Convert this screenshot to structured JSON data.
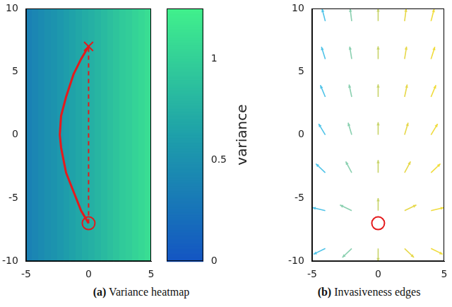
{
  "chart_data": [
    {
      "type": "heatmap",
      "title": "(a) Variance heatmap",
      "xlim": [
        -5,
        5
      ],
      "xticks": [
        -5,
        0,
        5
      ],
      "ylim": [
        -10,
        10
      ],
      "yticks": [
        -10,
        -5,
        0,
        5,
        10
      ],
      "grid": false,
      "cells": {
        "x": [
          -4.75,
          -4.25,
          -3.75,
          -3.25,
          -2.75,
          -2.25,
          -1.75,
          -1.25,
          -0.75,
          -0.25,
          0.25,
          0.75,
          1.25,
          1.75,
          2.25,
          2.75,
          3.25,
          3.75,
          4.25,
          4.75
        ],
        "values": [
          0.37,
          0.41,
          0.45,
          0.49,
          0.52,
          0.56,
          0.6,
          0.64,
          0.68,
          0.72,
          0.75,
          0.79,
          0.83,
          0.87,
          0.91,
          0.95,
          0.98,
          1.02,
          1.06,
          1.1
        ]
      },
      "colorbar": {
        "label": "variance",
        "range": [
          0,
          1.25
        ],
        "ticks": [
          0,
          0.5,
          1
        ]
      },
      "series": [
        {
          "type": "line",
          "line_style": "solid",
          "color": "#e41a1c",
          "x": [
            0,
            -0.6,
            -1.2,
            -1.8,
            -2.2,
            -2.3,
            -2.2,
            -1.8,
            -1.2,
            -0.6,
            0
          ],
          "y": [
            -7,
            -6,
            -4.5,
            -3,
            -1,
            0,
            1.5,
            3,
            4.8,
            6,
            7
          ]
        },
        {
          "type": "line",
          "line_style": "dashed",
          "color": "#e41a1c",
          "x": [
            0,
            0
          ],
          "y": [
            -7,
            7
          ]
        },
        {
          "type": "scatter",
          "marker": "circle",
          "color": "#e41a1c",
          "x": [
            0
          ],
          "y": [
            -7
          ]
        },
        {
          "type": "scatter",
          "marker": "cross",
          "color": "#e41a1c",
          "x": [
            0
          ],
          "y": [
            7
          ]
        }
      ]
    },
    {
      "type": "quiver",
      "title": "(b) Invasiveness edges",
      "xlim": [
        -5,
        5
      ],
      "xticks": [
        -5,
        0,
        5
      ],
      "ylim": [
        -10,
        10
      ],
      "yticks": [
        -10,
        -5,
        0,
        5,
        10
      ],
      "grid": false,
      "series": [
        {
          "type": "quiver",
          "color": "#4fc3e8",
          "x": [
            -4,
            -4,
            -4,
            -4,
            -4,
            -4,
            -4
          ],
          "y": [
            -9,
            -6,
            -3,
            0,
            3,
            6,
            9
          ],
          "u": [
            -0.89,
            -0.97,
            -0.71,
            -0.5,
            -0.37,
            -0.29,
            -0.24
          ],
          "v": [
            -0.45,
            0.24,
            0.71,
            0.87,
            0.93,
            0.96,
            0.97
          ]
        },
        {
          "type": "quiver",
          "color": "#8ad0b0",
          "x": [
            -2,
            -2,
            -2,
            -2,
            -2,
            -2,
            -2
          ],
          "y": [
            -9,
            -6,
            -3,
            0,
            3,
            6,
            9
          ],
          "u": [
            -0.71,
            -0.89,
            -0.45,
            -0.27,
            -0.2,
            -0.15,
            -0.12
          ],
          "v": [
            -0.71,
            0.45,
            0.89,
            0.96,
            0.98,
            0.99,
            0.99
          ]
        },
        {
          "type": "quiver",
          "color": "#c8d46a",
          "x": [
            0,
            0,
            0,
            0,
            0,
            0,
            0
          ],
          "y": [
            -9,
            -6,
            -3,
            0,
            3,
            6,
            9
          ],
          "u": [
            0,
            0,
            0,
            0,
            0,
            0,
            0
          ],
          "v": [
            -1,
            1,
            1,
            1,
            1,
            1,
            1
          ]
        },
        {
          "type": "quiver",
          "color": "#e6d84a",
          "x": [
            2,
            2,
            2,
            2,
            2,
            2,
            2
          ],
          "y": [
            -9,
            -6,
            -3,
            0,
            3,
            6,
            9
          ],
          "u": [
            0.71,
            0.89,
            0.45,
            0.27,
            0.2,
            0.15,
            0.12
          ],
          "v": [
            -0.71,
            0.45,
            0.89,
            0.96,
            0.98,
            0.99,
            0.99
          ]
        },
        {
          "type": "quiver",
          "color": "#f0dc3c",
          "x": [
            4,
            4,
            4,
            4,
            4,
            4,
            4
          ],
          "y": [
            -9,
            -6,
            -3,
            0,
            3,
            6,
            9
          ],
          "u": [
            0.89,
            0.97,
            0.71,
            0.5,
            0.37,
            0.29,
            0.24
          ],
          "v": [
            -0.45,
            0.24,
            0.71,
            0.87,
            0.93,
            0.96,
            0.97
          ]
        },
        {
          "type": "scatter",
          "marker": "circle",
          "color": "#e41a1c",
          "x": [
            0
          ],
          "y": [
            -7
          ]
        }
      ]
    }
  ]
}
